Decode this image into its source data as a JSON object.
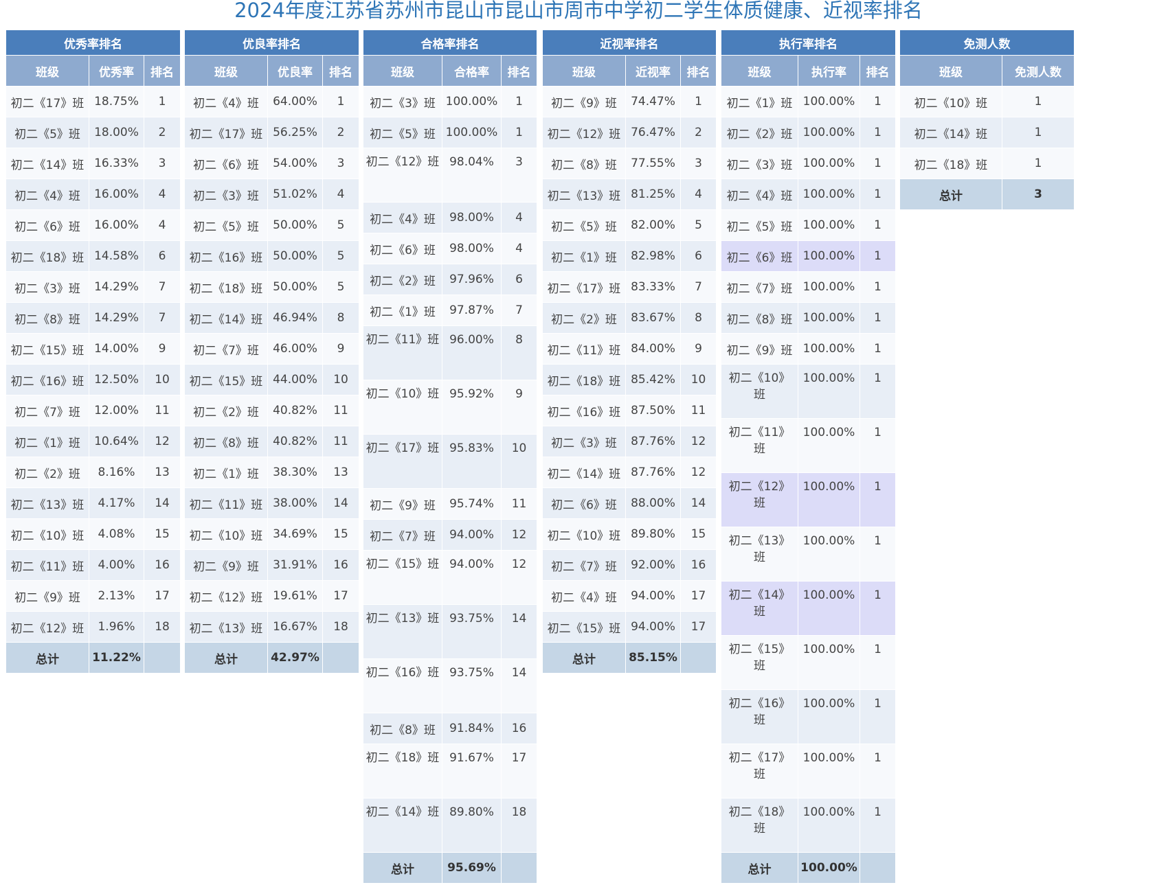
{
  "title": "2024年度江苏省苏州市昆山市昆山市周市中学初二学生体质健康、近视率排名",
  "tables": [
    {
      "name": "excellence-rate-ranking",
      "heading": "优秀率排名",
      "columns": [
        "班级",
        "优秀率",
        "排名"
      ],
      "rows": [
        [
          "初二《17》班",
          "18.75%",
          "1"
        ],
        [
          "初二《5》班",
          "18.00%",
          "2"
        ],
        [
          "初二《14》班",
          "16.33%",
          "3"
        ],
        [
          "初二《4》班",
          "16.00%",
          "4"
        ],
        [
          "初二《6》班",
          "16.00%",
          "4"
        ],
        [
          "初二《18》班",
          "14.58%",
          "6"
        ],
        [
          "初二《3》班",
          "14.29%",
          "7"
        ],
        [
          "初二《8》班",
          "14.29%",
          "7"
        ],
        [
          "初二《15》班",
          "14.00%",
          "9"
        ],
        [
          "初二《16》班",
          "12.50%",
          "10"
        ],
        [
          "初二《7》班",
          "12.00%",
          "11"
        ],
        [
          "初二《1》班",
          "10.64%",
          "12"
        ],
        [
          "初二《2》班",
          "8.16%",
          "13"
        ],
        [
          "初二《13》班",
          "4.17%",
          "14"
        ],
        [
          "初二《10》班",
          "4.08%",
          "15"
        ],
        [
          "初二《11》班",
          "4.00%",
          "16"
        ],
        [
          "初二《9》班",
          "2.13%",
          "17"
        ],
        [
          "初二《12》班",
          "1.96%",
          "18"
        ]
      ],
      "total": [
        "总计",
        "11.22%",
        ""
      ]
    },
    {
      "name": "good-rate-ranking",
      "heading": "优良率排名",
      "columns": [
        "班级",
        "优良率",
        "排名"
      ],
      "rows": [
        [
          "初二《4》班",
          "64.00%",
          "1"
        ],
        [
          "初二《17》班",
          "56.25%",
          "2"
        ],
        [
          "初二《6》班",
          "54.00%",
          "3"
        ],
        [
          "初二《3》班",
          "51.02%",
          "4"
        ],
        [
          "初二《5》班",
          "50.00%",
          "5"
        ],
        [
          "初二《16》班",
          "50.00%",
          "5"
        ],
        [
          "初二《18》班",
          "50.00%",
          "5"
        ],
        [
          "初二《14》班",
          "46.94%",
          "8"
        ],
        [
          "初二《7》班",
          "46.00%",
          "9"
        ],
        [
          "初二《15》班",
          "44.00%",
          "10"
        ],
        [
          "初二《2》班",
          "40.82%",
          "11"
        ],
        [
          "初二《8》班",
          "40.82%",
          "11"
        ],
        [
          "初二《1》班",
          "38.30%",
          "13"
        ],
        [
          "初二《11》班",
          "38.00%",
          "14"
        ],
        [
          "初二《10》班",
          "34.69%",
          "15"
        ],
        [
          "初二《9》班",
          "31.91%",
          "16"
        ],
        [
          "初二《12》班",
          "19.61%",
          "17"
        ],
        [
          "初二《13》班",
          "16.67%",
          "18"
        ]
      ],
      "total": [
        "总计",
        "42.97%",
        ""
      ]
    },
    {
      "name": "pass-rate-ranking",
      "heading": "合格率排名",
      "columns": [
        "班级",
        "合格率",
        "排名"
      ],
      "rows": [
        [
          "初二《3》班",
          "100.00%",
          "1"
        ],
        [
          "初二《5》班",
          "100.00%",
          "1"
        ],
        [
          "初二《12》班",
          "98.04%",
          "3"
        ],
        [
          "初二《4》班",
          "98.00%",
          "4"
        ],
        [
          "初二《6》班",
          "98.00%",
          "4"
        ],
        [
          "初二《2》班",
          "97.96%",
          "6"
        ],
        [
          "初二《1》班",
          "97.87%",
          "7"
        ],
        [
          "初二《11》班",
          "96.00%",
          "8"
        ],
        [
          "初二《10》班",
          "95.92%",
          "9"
        ],
        [
          "初二《17》班",
          "95.83%",
          "10"
        ],
        [
          "初二《9》班",
          "95.74%",
          "11"
        ],
        [
          "初二《7》班",
          "94.00%",
          "12"
        ],
        [
          "初二《15》班",
          "94.00%",
          "12"
        ],
        [
          "初二《13》班",
          "93.75%",
          "14"
        ],
        [
          "初二《16》班",
          "93.75%",
          "14"
        ],
        [
          "初二《8》班",
          "91.84%",
          "16"
        ],
        [
          "初二《18》班",
          "91.67%",
          "17"
        ],
        [
          "初二《14》班",
          "89.80%",
          "18"
        ]
      ],
      "total": [
        "总计",
        "95.69%",
        ""
      ]
    },
    {
      "name": "myopia-rate-ranking",
      "heading": "近视率排名",
      "columns": [
        "班级",
        "近视率",
        "排名"
      ],
      "rows": [
        [
          "初二《9》班",
          "74.47%",
          "1"
        ],
        [
          "初二《12》班",
          "76.47%",
          "2"
        ],
        [
          "初二《8》班",
          "77.55%",
          "3"
        ],
        [
          "初二《13》班",
          "81.25%",
          "4"
        ],
        [
          "初二《5》班",
          "82.00%",
          "5"
        ],
        [
          "初二《1》班",
          "82.98%",
          "6"
        ],
        [
          "初二《17》班",
          "83.33%",
          "7"
        ],
        [
          "初二《2》班",
          "83.67%",
          "8"
        ],
        [
          "初二《11》班",
          "84.00%",
          "9"
        ],
        [
          "初二《18》班",
          "85.42%",
          "10"
        ],
        [
          "初二《16》班",
          "87.50%",
          "11"
        ],
        [
          "初二《3》班",
          "87.76%",
          "12"
        ],
        [
          "初二《14》班",
          "87.76%",
          "12"
        ],
        [
          "初二《6》班",
          "88.00%",
          "14"
        ],
        [
          "初二《10》班",
          "89.80%",
          "15"
        ],
        [
          "初二《7》班",
          "92.00%",
          "16"
        ],
        [
          "初二《4》班",
          "94.00%",
          "17"
        ],
        [
          "初二《15》班",
          "94.00%",
          "17"
        ]
      ],
      "total": [
        "总计",
        "85.15%",
        ""
      ]
    },
    {
      "name": "execution-rate-ranking",
      "heading": "执行率排名",
      "columns": [
        "班级",
        "执行率",
        "排名"
      ],
      "rows": [
        [
          "初二《1》班",
          "100.00%",
          "1"
        ],
        [
          "初二《2》班",
          "100.00%",
          "1"
        ],
        [
          "初二《3》班",
          "100.00%",
          "1"
        ],
        [
          "初二《4》班",
          "100.00%",
          "1"
        ],
        [
          "初二《5》班",
          "100.00%",
          "1"
        ],
        [
          "初二《6》班",
          "100.00%",
          "1"
        ],
        [
          "初二《7》班",
          "100.00%",
          "1"
        ],
        [
          "初二《8》班",
          "100.00%",
          "1"
        ],
        [
          "初二《9》班",
          "100.00%",
          "1"
        ],
        [
          "初二《10》班",
          "100.00%",
          "1"
        ],
        [
          "初二《11》班",
          "100.00%",
          "1"
        ],
        [
          "初二《12》班",
          "100.00%",
          "1"
        ],
        [
          "初二《13》班",
          "100.00%",
          "1"
        ],
        [
          "初二《14》班",
          "100.00%",
          "1"
        ],
        [
          "初二《15》班",
          "100.00%",
          "1"
        ],
        [
          "初二《16》班",
          "100.00%",
          "1"
        ],
        [
          "初二《17》班",
          "100.00%",
          "1"
        ],
        [
          "初二《18》班",
          "100.00%",
          "1"
        ]
      ],
      "total": [
        "总计",
        "100.00%",
        ""
      ]
    },
    {
      "name": "exempt-count",
      "heading": "免测人数",
      "columns": [
        "班级",
        "免测人数"
      ],
      "rows": [
        [
          "初二《10》班",
          "1"
        ],
        [
          "初二《14》班",
          "1"
        ],
        [
          "初二《18》班",
          "1"
        ]
      ],
      "total": [
        "总计",
        "3"
      ]
    }
  ]
}
